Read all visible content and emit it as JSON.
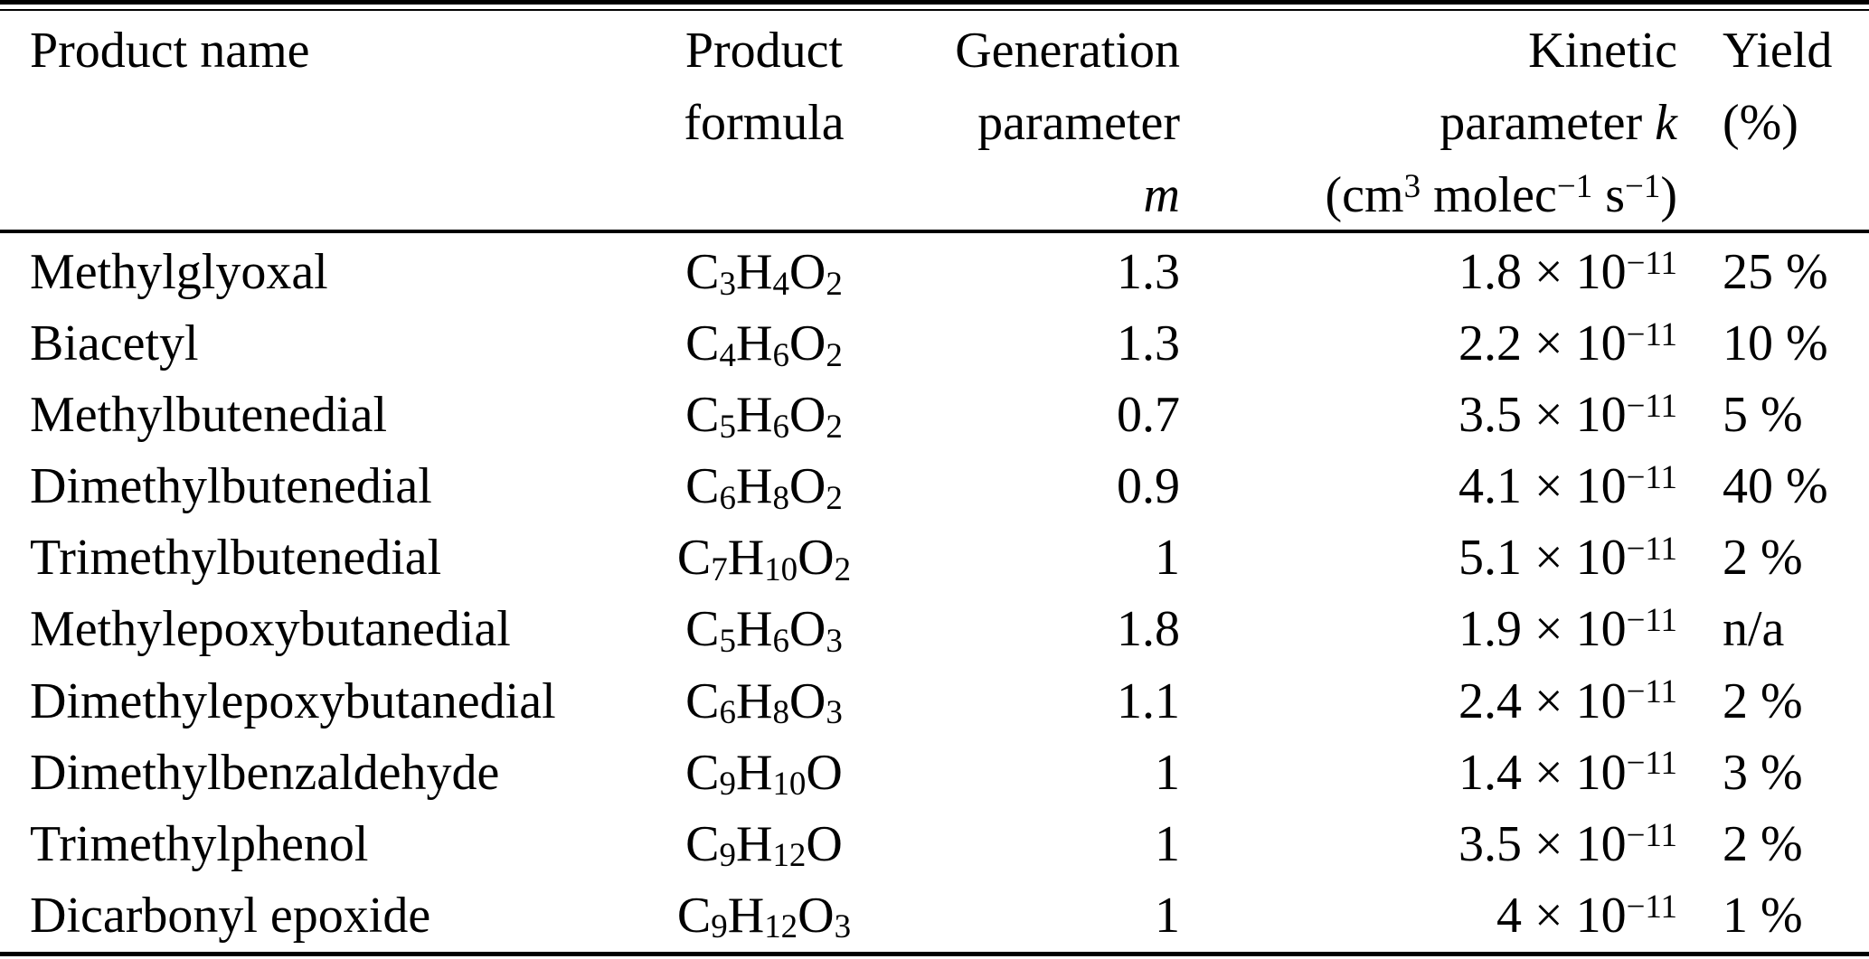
{
  "colors": {
    "text": "#000000",
    "background": "#ffffff",
    "rule": "#000000"
  },
  "table": {
    "headers": [
      {
        "id": "product-name",
        "lines": [
          "Product name"
        ]
      },
      {
        "id": "product-formula",
        "lines": [
          "Product",
          "formula"
        ]
      },
      {
        "id": "generation-parameter",
        "lines": [
          "Generation",
          "parameter",
          "*m*"
        ]
      },
      {
        "id": "kinetic-parameter",
        "lines": [
          "Kinetic",
          "parameter *k*",
          "(cm^3^ molec^−1^ s^−1^)"
        ]
      },
      {
        "id": "yield",
        "lines": [
          "Yield",
          "(%)"
        ]
      }
    ],
    "rows": [
      {
        "name": "Methylglyoxal",
        "formula": "C~3~H~4~O~2~",
        "m": "1.3",
        "k": "1.8 × 10^−11^",
        "yield": "25 %"
      },
      {
        "name": "Biacetyl",
        "formula": "C~4~H~6~O~2~",
        "m": "1.3",
        "k": "2.2 × 10^−11^",
        "yield": "10 %"
      },
      {
        "name": "Methylbutenedial",
        "formula": "C~5~H~6~O~2~",
        "m": "0.7",
        "k": "3.5 × 10^−11^",
        "yield": "5 %"
      },
      {
        "name": "Dimethylbutenedial",
        "formula": "C~6~H~8~O~2~",
        "m": "0.9",
        "k": "4.1 × 10^−11^",
        "yield": "40 %"
      },
      {
        "name": "Trimethylbutenedial",
        "formula": "C~7~H~10~O~2~",
        "m": "1",
        "k": "5.1 × 10^−11^",
        "yield": "2 %"
      },
      {
        "name": "Methylepoxybutanedial",
        "formula": "C~5~H~6~O~3~",
        "m": "1.8",
        "k": "1.9 × 10^−11^",
        "yield": "n/a"
      },
      {
        "name": "Dimethylepoxybutanedial",
        "formula": "C~6~H~8~O~3~",
        "m": "1.1",
        "k": "2.4 × 10^−11^",
        "yield": "2 %"
      },
      {
        "name": "Dimethylbenzaldehyde",
        "formula": "C~9~H~10~O",
        "m": "1",
        "k": "1.4 × 10^−11^",
        "yield": "3 %"
      },
      {
        "name": "Trimethylphenol",
        "formula": "C~9~H~12~O",
        "m": "1",
        "k": "3.5 × 10^−11^",
        "yield": "2 %"
      },
      {
        "name": "Dicarbonyl epoxide",
        "formula": "C~9~H~12~O~3~",
        "m": "1",
        "k": "4 × 10^−11^",
        "yield": "1 %"
      }
    ]
  }
}
